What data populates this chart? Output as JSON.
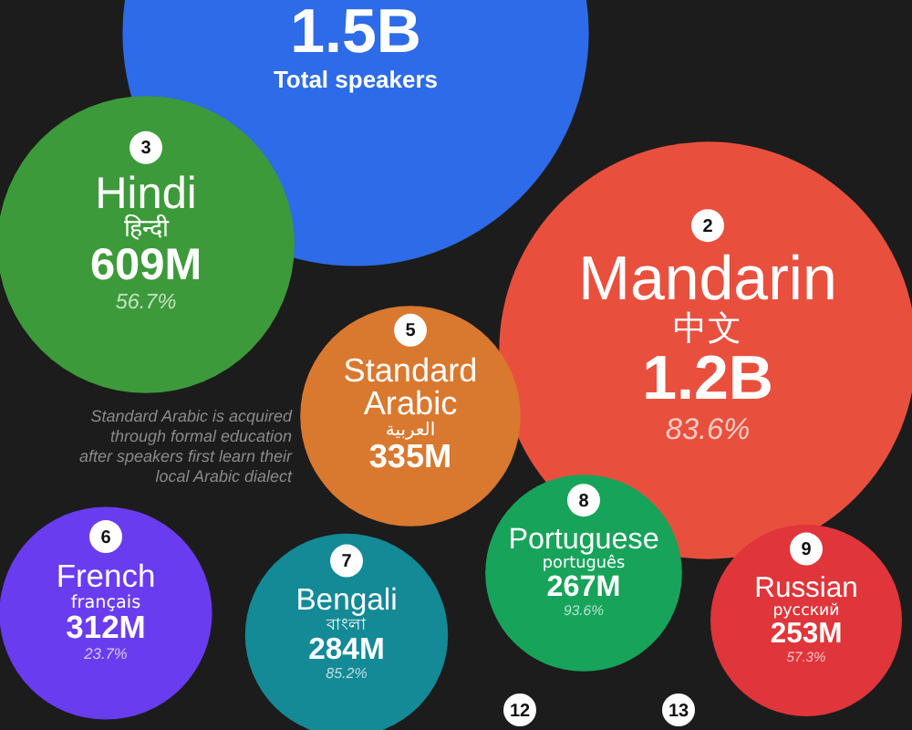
{
  "chart_data": {
    "type": "other",
    "categories": [
      "Total speakers",
      "Mandarin\n中文",
      "Hindi\nहिन्दी",
      "Standard Arabic\nالعربية",
      "French\nfrançais",
      "Bengali\nবাংলা",
      "Portuguese\nportuguês",
      "Russian\nрусский"
    ],
    "series": [
      {
        "values": [
          1500000000,
          1200000000,
          609000000,
          335000000,
          312000000,
          284000000,
          267000000,
          253000000
        ],
        "value_labels": [
          "1.5B",
          "1.2B",
          "609M",
          "335M",
          "312M",
          "284M",
          "267M",
          "253M"
        ],
        "colors": [
          "#2d6be8",
          "#e8503d",
          "#3d9a3a",
          "#d9782f",
          "#6a3cf0",
          "#138a96",
          "#17a35a",
          "#e0353a"
        ]
      }
    ],
    "annotations": [
      "Standard Arabic is acquired through formal education after speakers first learn their local Arabic dialect",
      "12",
      "13",
      {
        "text": "2",
        "x": "Mandarin\n中文"
      },
      {
        "text": "83.6%",
        "x": "Mandarin\n中文"
      },
      {
        "text": "3",
        "x": "Hindi\nहिन्दी"
      },
      {
        "text": "56.7%",
        "x": "Hindi\nहिन्दी"
      },
      {
        "text": "5",
        "x": "Standard Arabic\nالعربية"
      },
      {
        "text": "6",
        "x": "French\nfrançais"
      },
      {
        "text": "23.7%",
        "x": "French\nfrançais"
      },
      {
        "text": "7",
        "x": "Bengali\nবাংলা"
      },
      {
        "text": "85.2%",
        "x": "Bengali\nবাংলা"
      },
      {
        "text": "8",
        "x": "Portuguese\nportuguês"
      },
      {
        "text": "93.6%",
        "x": "Portuguese\nportuguês"
      },
      {
        "text": "9",
        "x": "Russian\nрусский"
      },
      {
        "text": "57.3%",
        "x": "Russian\nрусский"
      }
    ]
  }
}
